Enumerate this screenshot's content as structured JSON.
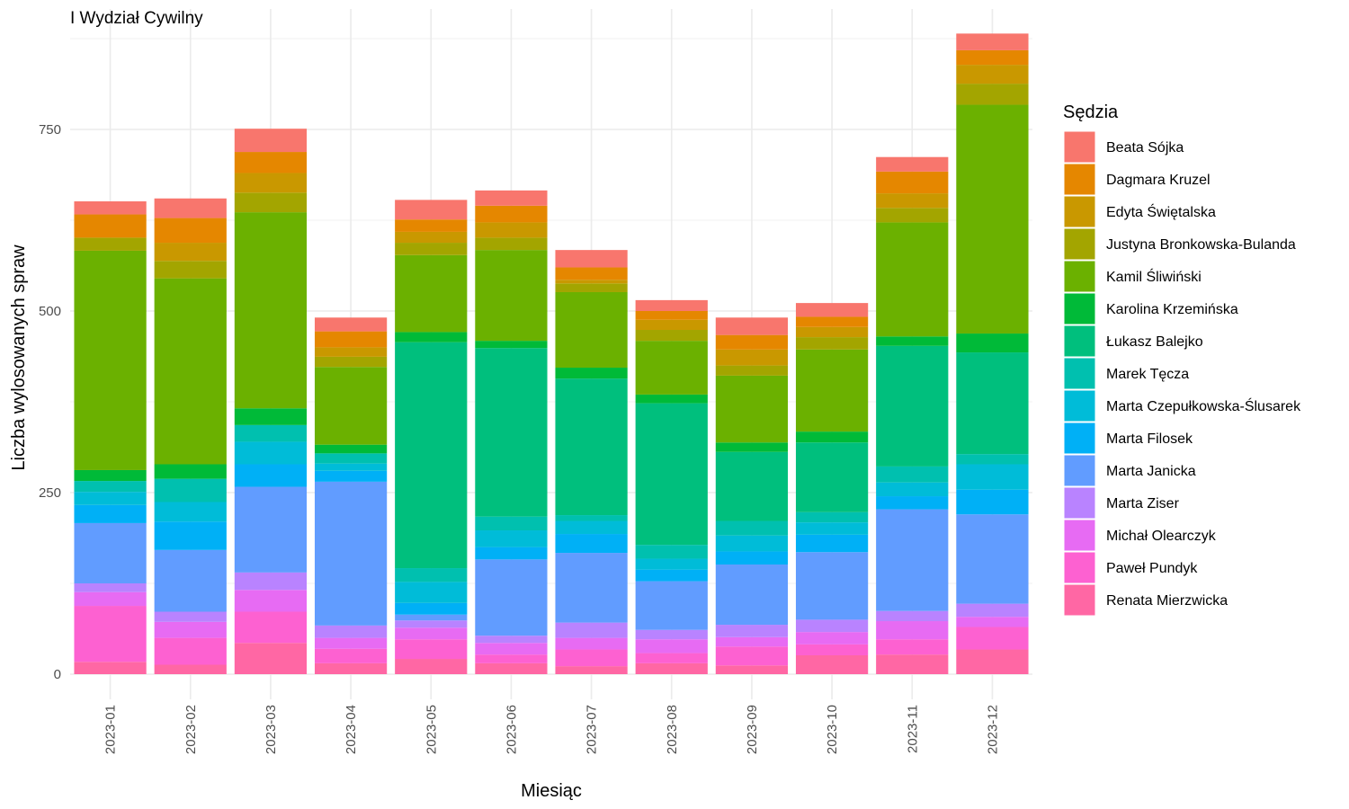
{
  "chart_data": {
    "type": "bar",
    "stacked": true,
    "title": "I Wydział Cywilny",
    "xlabel": "Miesiąc",
    "ylabel": "Liczba wylosowanych spraw",
    "legend_title": "Sędzia",
    "legend_position": "right",
    "grid": true,
    "ylim": [
      0,
      900
    ],
    "yticks": [
      0,
      250,
      500,
      750
    ],
    "categories": [
      "2023-01",
      "2023-02",
      "2023-03",
      "2023-04",
      "2023-05",
      "2023-06",
      "2023-07",
      "2023-08",
      "2023-09",
      "2023-10",
      "2023-11",
      "2023-12"
    ],
    "series": [
      {
        "name": "Beata Sójka",
        "color": "#F8766D",
        "values": [
          18,
          27,
          32,
          19,
          27,
          21,
          24,
          15,
          24,
          19,
          20,
          23
        ]
      },
      {
        "name": "Dagmara Kruzel",
        "color": "#E58700",
        "values": [
          32,
          34,
          29,
          22,
          17,
          23,
          17,
          12,
          20,
          14,
          30,
          20
        ]
      },
      {
        "name": "Edyta Świętalska",
        "color": "#C99800",
        "values": [
          0,
          25,
          27,
          13,
          15,
          21,
          5,
          14,
          22,
          14,
          20,
          26
        ]
      },
      {
        "name": "Justyna Bronkowska-Bulanda",
        "color": "#A3A500",
        "values": [
          18,
          24,
          27,
          14,
          17,
          17,
          12,
          15,
          14,
          17,
          20,
          29
        ]
      },
      {
        "name": "Kamil Śliwiński",
        "color": "#6BB100",
        "values": [
          302,
          256,
          270,
          107,
          106,
          125,
          104,
          74,
          92,
          113,
          157,
          315
        ]
      },
      {
        "name": "Karolina Krzemińska",
        "color": "#00BA38",
        "values": [
          15,
          20,
          23,
          12,
          14,
          10,
          15,
          12,
          13,
          15,
          13,
          26
        ]
      },
      {
        "name": "Łukasz Balejko",
        "color": "#00BF7D",
        "values": [
          0,
          0,
          0,
          0,
          311,
          232,
          188,
          195,
          95,
          96,
          166,
          140
        ]
      },
      {
        "name": "Marek Tęcza",
        "color": "#00C0AF",
        "values": [
          15,
          32,
          23,
          14,
          19,
          19,
          8,
          19,
          20,
          14,
          22,
          14
        ]
      },
      {
        "name": "Marta Czepułkowska-Ślusarek",
        "color": "#00BCD8",
        "values": [
          18,
          27,
          31,
          10,
          29,
          23,
          18,
          15,
          22,
          17,
          19,
          35
        ]
      },
      {
        "name": "Marta Filosek",
        "color": "#00B0F6",
        "values": [
          25,
          39,
          31,
          15,
          16,
          17,
          26,
          16,
          18,
          24,
          18,
          34
        ]
      },
      {
        "name": "Marta Janicka",
        "color": "#619CFF",
        "values": [
          83,
          85,
          118,
          198,
          8,
          105,
          96,
          67,
          83,
          93,
          140,
          123
        ]
      },
      {
        "name": "Marta Ziser",
        "color": "#B983FF",
        "values": [
          12,
          14,
          24,
          17,
          10,
          10,
          21,
          13,
          17,
          17,
          14,
          18
        ]
      },
      {
        "name": "Michał Olearczyk",
        "color": "#E76BF3",
        "values": [
          19,
          22,
          30,
          15,
          16,
          16,
          16,
          19,
          13,
          17,
          25,
          14
        ]
      },
      {
        "name": "Paweł Pundyk",
        "color": "#FD61D1",
        "values": [
          77,
          37,
          43,
          20,
          27,
          12,
          23,
          14,
          26,
          15,
          21,
          31
        ]
      },
      {
        "name": "Renata Mierzwicka",
        "color": "#FF67A4",
        "values": [
          17,
          13,
          43,
          15,
          21,
          15,
          11,
          15,
          12,
          26,
          27,
          34
        ]
      }
    ]
  }
}
